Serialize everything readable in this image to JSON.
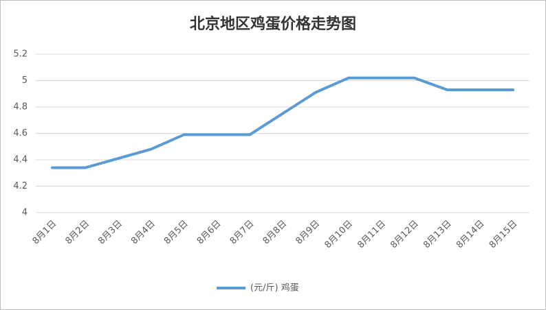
{
  "chart_data": {
    "type": "line",
    "title": "北京地区鸡蛋价格走势图",
    "categories": [
      "8月1日",
      "8月2日",
      "8月3日",
      "8月4日",
      "8月5日",
      "8月6日",
      "8月7日",
      "8月8日",
      "8月9日",
      "8月10日",
      "8月11日",
      "8月12日",
      "8月13日",
      "8月14日",
      "8月15日"
    ],
    "series": [
      {
        "name": "(元/斤) 鸡蛋",
        "color": "#5b9bd5",
        "values": [
          4.34,
          4.34,
          4.41,
          4.48,
          4.59,
          4.59,
          4.59,
          4.75,
          4.91,
          5.02,
          5.02,
          5.02,
          4.93,
          4.93,
          4.93
        ]
      }
    ],
    "ylim": [
      4,
      5.2
    ],
    "yticks": [
      4,
      4.2,
      4.4,
      4.6,
      4.8,
      5,
      5.2
    ],
    "grid": true,
    "legend": "bottom"
  }
}
